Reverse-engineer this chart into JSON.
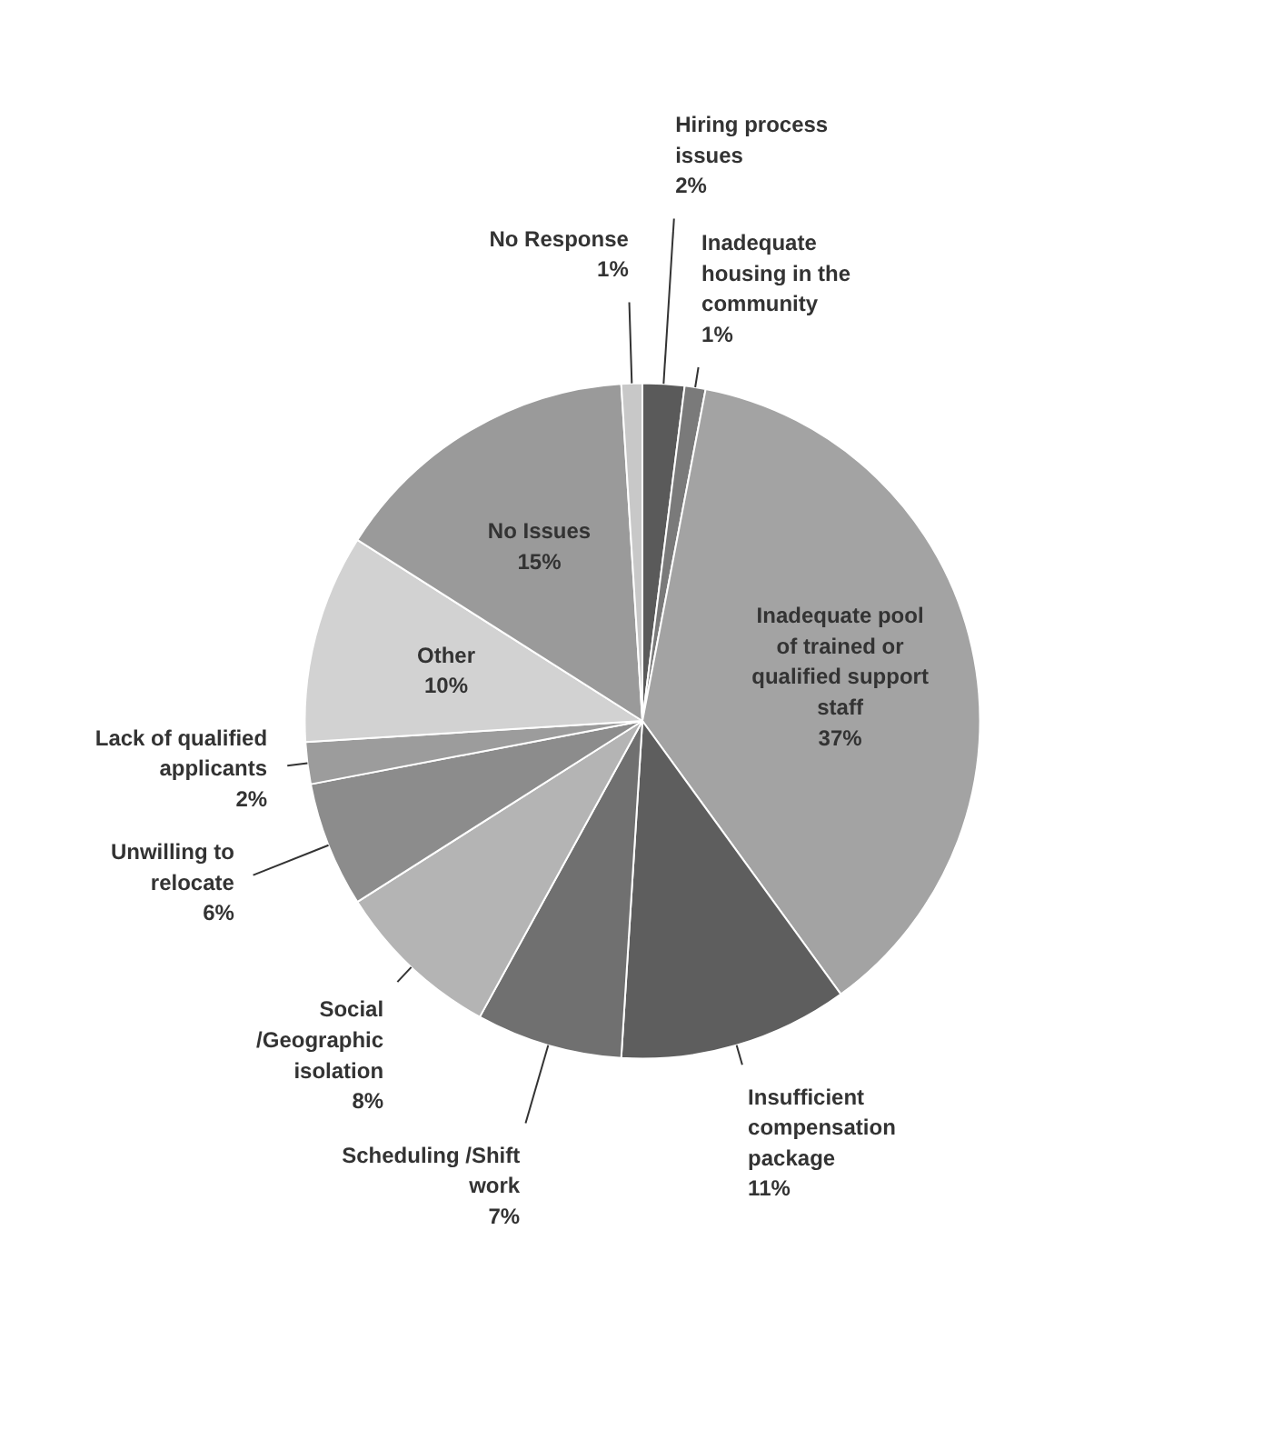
{
  "chart_data": {
    "type": "pie",
    "categories": [
      "Hiring process issues",
      "Inadequate housing in the community",
      "Inadequate pool of trained or qualified support staff",
      "Insufficient compensation package",
      "Scheduling /Shift work",
      "Social /Geographic isolation",
      "Unwilling to relocate",
      "Lack of qualified applicants",
      "Other",
      "No Issues",
      "No Response"
    ],
    "values": [
      2,
      1,
      37,
      11,
      7,
      8,
      6,
      2,
      10,
      15,
      1
    ],
    "colors": [
      "#5a5a5a",
      "#7a7a7a",
      "#a3a3a3",
      "#5e5e5e",
      "#707070",
      "#b4b4b4",
      "#8c8c8c",
      "#9c9c9c",
      "#d2d2d2",
      "#9a9a9a",
      "#c8c8c8"
    ],
    "value_labels": [
      "2%",
      "1%",
      "37%",
      "11%",
      "7%",
      "8%",
      "6%",
      "2%",
      "10%",
      "15%",
      "1%"
    ]
  }
}
